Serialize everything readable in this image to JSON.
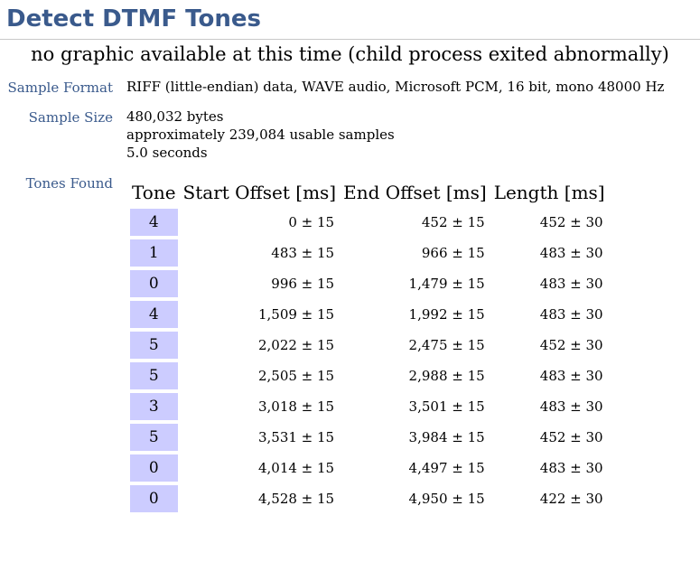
{
  "title": "Detect DTMF Tones",
  "notice": "no graphic available at this time (child process exited abnormally)",
  "sample_format": {
    "label": "Sample Format",
    "value": "RIFF (little-endian) data, WAVE audio, Microsoft PCM, 16 bit, mono 48000 Hz"
  },
  "sample_size": {
    "label": "Sample Size",
    "bytes": "480,032 bytes",
    "samples": "approximately 239,084 usable samples",
    "seconds": "5.0 seconds"
  },
  "tones_found": {
    "label": "Tones Found",
    "headers": [
      "Tone",
      "Start Offset [ms]",
      "End Offset [ms]",
      "Length [ms]"
    ],
    "rows": [
      {
        "tone": "4",
        "start": "0 ± 15",
        "end": "452 ± 15",
        "length": "452 ± 30"
      },
      {
        "tone": "1",
        "start": "483 ± 15",
        "end": "966 ± 15",
        "length": "483 ± 30"
      },
      {
        "tone": "0",
        "start": "996 ± 15",
        "end": "1,479 ± 15",
        "length": "483 ± 30"
      },
      {
        "tone": "4",
        "start": "1,509 ± 15",
        "end": "1,992 ± 15",
        "length": "483 ± 30"
      },
      {
        "tone": "5",
        "start": "2,022 ± 15",
        "end": "2,475 ± 15",
        "length": "452 ± 30"
      },
      {
        "tone": "5",
        "start": "2,505 ± 15",
        "end": "2,988 ± 15",
        "length": "483 ± 30"
      },
      {
        "tone": "3",
        "start": "3,018 ± 15",
        "end": "3,501 ± 15",
        "length": "483 ± 30"
      },
      {
        "tone": "5",
        "start": "3,531 ± 15",
        "end": "3,984 ± 15",
        "length": "452 ± 30"
      },
      {
        "tone": "0",
        "start": "4,014 ± 15",
        "end": "4,497 ± 15",
        "length": "483 ± 30"
      },
      {
        "tone": "0",
        "start": "4,528 ± 15",
        "end": "4,950 ± 15",
        "length": "422 ± 30"
      }
    ]
  }
}
